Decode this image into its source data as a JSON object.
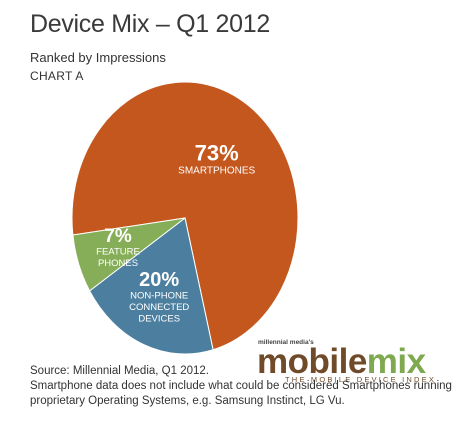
{
  "chart_data": {
    "type": "pie",
    "title": "Device Mix – Q1 2012",
    "subtitle": "Ranked by Impressions",
    "chart_label": "CHART A",
    "slices": [
      {
        "label": [
          "SMARTPHONES"
        ],
        "pct_text": "73%",
        "value": 73,
        "color": "#c4571d"
      },
      {
        "label": [
          "NON-PHONE",
          "CONNECTED",
          "DEVICES"
        ],
        "pct_text": "20%",
        "value": 20,
        "color": "#4c7f9f"
      },
      {
        "label": [
          "FEATURE",
          "PHONES"
        ],
        "pct_text": "7%",
        "value": 7,
        "color": "#86ae58"
      }
    ]
  },
  "branding": {
    "small": "millennial media's",
    "logo_part1": "mobile",
    "logo_part2": "mix",
    "tagline": "THE MOBILE DEVICE INDEX"
  },
  "footnote": {
    "lines": [
      "Source: Millennial Media, Q1 2012.",
      "Smartphone data does not include what could be considered Smartphones running",
      "proprietary Operating Systems, e.g. Samsung Instinct, LG Vu."
    ]
  }
}
